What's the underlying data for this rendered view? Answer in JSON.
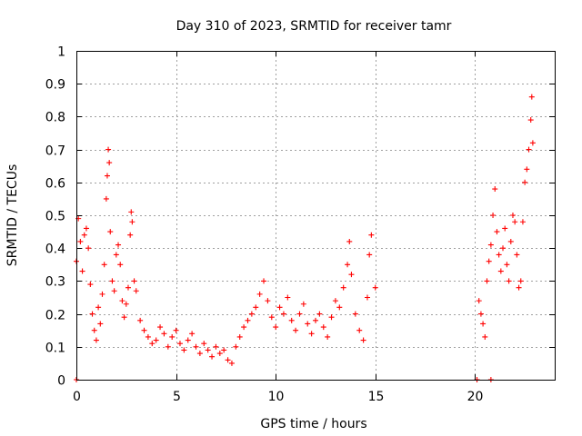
{
  "chart_data": {
    "type": "scatter",
    "title": "Day 310 of 2023, SRMTID for receiver tamr",
    "xlabel": "GPS time / hours",
    "ylabel": "SRMTID / TECUs",
    "xlim": [
      0,
      24
    ],
    "ylim": [
      0,
      1
    ],
    "x_ticks": [
      0,
      5,
      10,
      15,
      20
    ],
    "y_ticks": [
      0,
      0.1,
      0.2,
      0.3,
      0.4,
      0.5,
      0.6,
      0.7,
      0.8,
      0.9,
      1
    ],
    "x_tick_labels": [
      "0",
      "5",
      "10",
      "15",
      "20"
    ],
    "y_tick_labels": [
      "0",
      "0.1",
      "0.2",
      "0.3",
      "0.4",
      "0.5",
      "0.6",
      "0.7",
      "0.8",
      "0.9",
      "1"
    ],
    "grid": true,
    "marker": "+",
    "marker_color": "#ff0000",
    "series": [
      {
        "name": "SRMTID",
        "x": [
          0.0,
          0.1,
          0.2,
          0.3,
          0.4,
          0.5,
          0.6,
          0.7,
          0.8,
          0.9,
          1.0,
          1.1,
          1.2,
          1.3,
          1.4,
          1.5,
          1.55,
          1.6,
          1.65,
          1.7,
          1.8,
          1.9,
          2.0,
          2.1,
          2.2,
          2.3,
          2.4,
          2.5,
          2.6,
          2.7,
          2.75,
          2.8,
          2.9,
          3.0,
          3.2,
          3.4,
          3.6,
          3.8,
          4.0,
          4.2,
          4.4,
          4.6,
          4.8,
          5.0,
          5.2,
          5.4,
          5.6,
          5.8,
          6.0,
          6.2,
          6.4,
          6.6,
          6.8,
          7.0,
          7.2,
          7.4,
          7.6,
          7.8,
          8.0,
          8.2,
          8.4,
          8.6,
          8.8,
          9.0,
          9.2,
          9.4,
          9.6,
          9.8,
          10.0,
          10.2,
          10.4,
          10.6,
          10.8,
          11.0,
          11.2,
          11.4,
          11.6,
          11.8,
          12.0,
          12.2,
          12.4,
          12.6,
          12.8,
          13.0,
          13.2,
          13.4,
          13.6,
          13.7,
          13.8,
          14.0,
          14.2,
          14.4,
          14.6,
          14.7,
          14.8,
          15.0,
          20.2,
          20.3,
          20.4,
          20.5,
          20.6,
          20.7,
          20.8,
          20.9,
          21.0,
          21.1,
          21.2,
          21.3,
          21.4,
          21.5,
          21.6,
          21.7,
          21.8,
          21.9,
          22.0,
          22.1,
          22.2,
          22.3,
          22.4,
          22.5,
          22.6,
          22.7,
          22.8,
          22.85,
          22.9
        ],
        "y": [
          0.36,
          0.49,
          0.42,
          0.33,
          0.44,
          0.46,
          0.4,
          0.29,
          0.2,
          0.15,
          0.12,
          0.22,
          0.17,
          0.26,
          0.35,
          0.55,
          0.62,
          0.7,
          0.66,
          0.45,
          0.3,
          0.27,
          0.38,
          0.41,
          0.35,
          0.24,
          0.19,
          0.23,
          0.28,
          0.44,
          0.51,
          0.48,
          0.3,
          0.27,
          0.18,
          0.15,
          0.13,
          0.11,
          0.12,
          0.16,
          0.14,
          0.1,
          0.13,
          0.15,
          0.11,
          0.09,
          0.12,
          0.14,
          0.1,
          0.08,
          0.11,
          0.09,
          0.07,
          0.1,
          0.08,
          0.09,
          0.06,
          0.05,
          0.1,
          0.13,
          0.16,
          0.18,
          0.2,
          0.22,
          0.26,
          0.3,
          0.24,
          0.19,
          0.16,
          0.22,
          0.2,
          0.25,
          0.18,
          0.15,
          0.2,
          0.23,
          0.17,
          0.14,
          0.18,
          0.2,
          0.16,
          0.13,
          0.19,
          0.24,
          0.22,
          0.28,
          0.35,
          0.42,
          0.32,
          0.2,
          0.15,
          0.12,
          0.25,
          0.38,
          0.44,
          0.28,
          0.24,
          0.2,
          0.17,
          0.13,
          0.3,
          0.36,
          0.41,
          0.5,
          0.58,
          0.45,
          0.38,
          0.33,
          0.4,
          0.46,
          0.35,
          0.3,
          0.42,
          0.5,
          0.48,
          0.38,
          0.28,
          0.3,
          0.48,
          0.6,
          0.64,
          0.7,
          0.79,
          0.86,
          0.72
        ]
      }
    ],
    "zero_markers": {
      "x": [
        0.0,
        20.1,
        20.8
      ],
      "y": [
        0.0,
        0.0,
        0.0
      ]
    }
  }
}
